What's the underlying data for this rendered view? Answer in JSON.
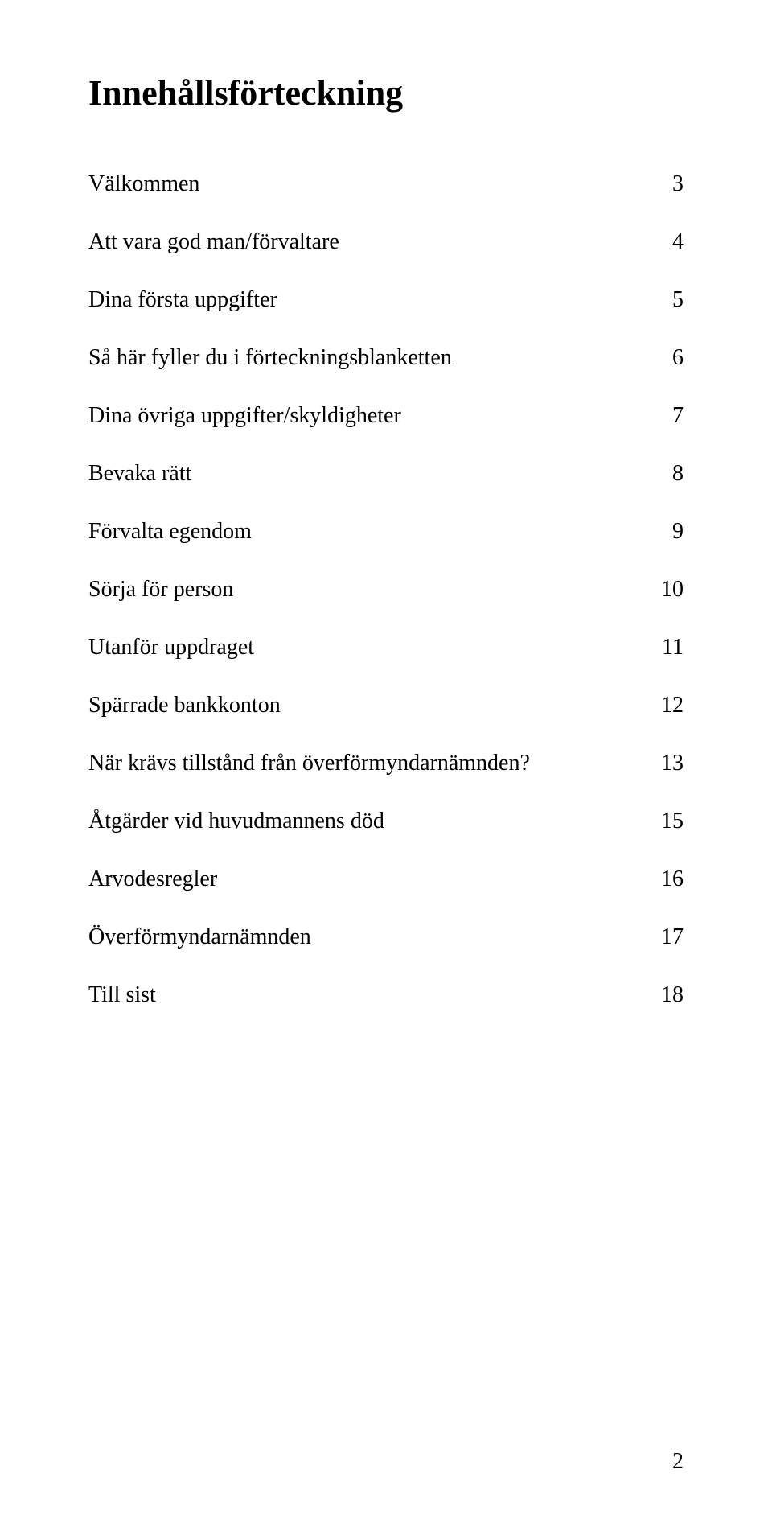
{
  "title": "Innehållsförteckning",
  "toc": {
    "entries": [
      {
        "label": "Välkommen",
        "page": "3"
      },
      {
        "label": "Att vara god man/förvaltare",
        "page": "4"
      },
      {
        "label": "Dina första uppgifter",
        "page": "5"
      },
      {
        "label": "Så här fyller du i förteckningsblanketten",
        "page": "6"
      },
      {
        "label": "Dina övriga uppgifter/skyldigheter",
        "page": "7"
      },
      {
        "label": "Bevaka rätt",
        "page": "8"
      },
      {
        "label": "Förvalta egendom",
        "page": "9"
      },
      {
        "label": "Sörja för person",
        "page": "10"
      },
      {
        "label": "Utanför uppdraget",
        "page": "11"
      },
      {
        "label": "Spärrade bankkonton",
        "page": "12"
      },
      {
        "label": "När krävs tillstånd från överförmyndarnämnden?",
        "page": "13"
      },
      {
        "label": "Åtgärder vid huvudmannens död",
        "page": "15"
      },
      {
        "label": "Arvodesregler",
        "page": "16"
      },
      {
        "label": "Överförmyndarnämnden",
        "page": "17"
      },
      {
        "label": "Till sist",
        "page": "18"
      }
    ]
  },
  "footer": {
    "page_number": "2"
  },
  "style": {
    "background_color": "#ffffff",
    "text_color": "#000000",
    "title_fontsize_pt": 33,
    "entry_fontsize_pt": 21,
    "font_family": "Times New Roman"
  }
}
